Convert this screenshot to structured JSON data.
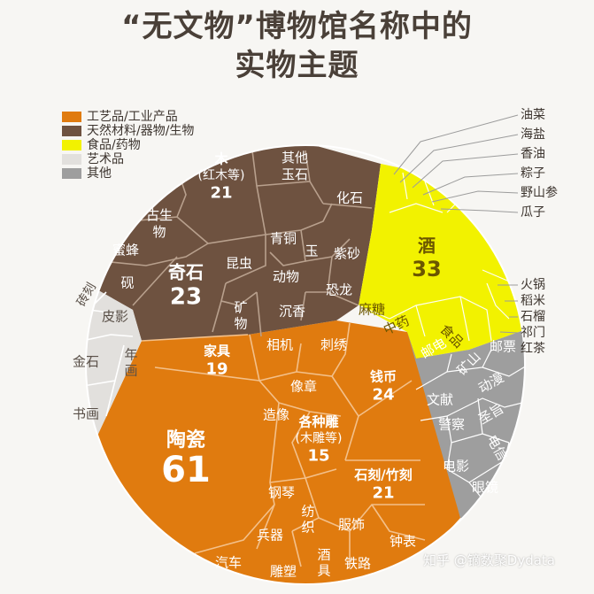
{
  "chart_data": {
    "type": "voronoi-treemap",
    "title_line1": "“无文物”博物馆名称中的",
    "title_line2": "实物主题",
    "legend": [
      {
        "label": "工艺品/工业产品",
        "color": "#e07b0f"
      },
      {
        "label": "天然材料/器物/生物",
        "color": "#6e5240"
      },
      {
        "label": "食品/药物",
        "color": "#f2f200"
      },
      {
        "label": "艺术品",
        "color": "#e2e0dd"
      },
      {
        "label": "其他",
        "color": "#9e9e9e"
      }
    ],
    "groups": [
      {
        "category": "工艺品/工业产品",
        "cells": [
          {
            "name": "陶瓷",
            "value": 61
          },
          {
            "name": "钱币",
            "value": 24
          },
          {
            "name": "石刻/竹刻",
            "value": 21
          },
          {
            "name": "家具",
            "value": 19
          },
          {
            "name": "各种雕",
            "sub": "(木雕等)",
            "value": 15
          },
          {
            "name": "相机"
          },
          {
            "name": "刺绣"
          },
          {
            "name": "像章"
          },
          {
            "name": "造像"
          },
          {
            "name": "钢琴"
          },
          {
            "name": "兵器"
          },
          {
            "name": "纺织"
          },
          {
            "name": "服饰"
          },
          {
            "name": "汽车"
          },
          {
            "name": "雕塑"
          },
          {
            "name": "酒具"
          },
          {
            "name": "铁路"
          },
          {
            "name": "钟表"
          }
        ]
      },
      {
        "category": "天然材料/器物/生物",
        "cells": [
          {
            "name": "奇石",
            "value": 23
          },
          {
            "name": "木",
            "sub": "(红木等)",
            "value": 21
          },
          {
            "name": "其他玉石"
          },
          {
            "name": "化石"
          },
          {
            "name": "古生物"
          },
          {
            "name": "蜜蜂"
          },
          {
            "name": "砚"
          },
          {
            "name": "昆虫"
          },
          {
            "name": "青铜"
          },
          {
            "name": "玉"
          },
          {
            "name": "紫砂"
          },
          {
            "name": "动物"
          },
          {
            "name": "矿物"
          },
          {
            "name": "沉香"
          },
          {
            "name": "恐龙"
          }
        ]
      },
      {
        "category": "食品/药物",
        "cells": [
          {
            "name": "酒",
            "value": 33
          },
          {
            "name": "中药"
          },
          {
            "name": "麻糖"
          },
          {
            "name": "食品"
          }
        ],
        "callouts": [
          "油菜",
          "海盐",
          "香油",
          "粽子",
          "野山参",
          "瓜子",
          "火锅",
          "稻米",
          "石榴",
          "祁门红茶"
        ]
      },
      {
        "category": "艺术品",
        "cells": [
          {
            "name": "皮影"
          },
          {
            "name": "金石"
          },
          {
            "name": "年画"
          },
          {
            "name": "书画"
          },
          {
            "name": "砖刻"
          }
        ]
      },
      {
        "category": "其他",
        "cells": [
          {
            "name": "邮电"
          },
          {
            "name": "矿山"
          },
          {
            "name": "邮票"
          },
          {
            "name": "文献"
          },
          {
            "name": "动漫"
          },
          {
            "name": "圣旨"
          },
          {
            "name": "警察"
          },
          {
            "name": "电信"
          },
          {
            "name": "电影"
          },
          {
            "name": "眼镜"
          }
        ]
      }
    ]
  },
  "watermark": "知乎 @镝数聚Dydata"
}
